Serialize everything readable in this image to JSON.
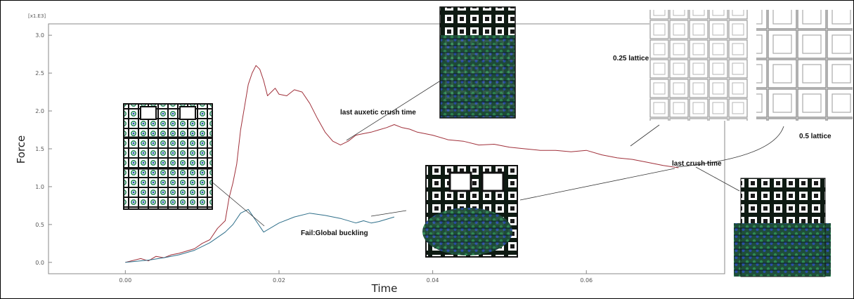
{
  "chart_data": {
    "type": "line",
    "scale_label": "[x1.E3]",
    "xlabel": "Time",
    "ylabel": "Force",
    "xlim": [
      -0.01,
      0.078
    ],
    "ylim": [
      -0.15,
      3.15
    ],
    "x_ticks": [
      0.0,
      0.02,
      0.04,
      0.06
    ],
    "x_tick_labels": [
      "0.00",
      "0.02",
      "0.04",
      "0.06"
    ],
    "y_ticks": [
      0.0,
      0.5,
      1.0,
      1.5,
      2.0,
      2.5,
      3.0
    ],
    "y_tick_labels": [
      "0.0",
      "0.5",
      "1.0",
      "1.5",
      "2.0",
      "2.5",
      "3.0"
    ],
    "grid": false,
    "series": [
      {
        "color": "#a0303a",
        "x": [
          0.0,
          0.002,
          0.003,
          0.004,
          0.005,
          0.006,
          0.007,
          0.008,
          0.009,
          0.01,
          0.011,
          0.012,
          0.013,
          0.0135,
          0.014,
          0.0145,
          0.015,
          0.0155,
          0.016,
          0.0165,
          0.017,
          0.0175,
          0.018,
          0.0185,
          0.019,
          0.0195,
          0.02,
          0.021,
          0.022,
          0.023,
          0.024,
          0.025,
          0.026,
          0.027,
          0.028,
          0.029,
          0.03,
          0.031,
          0.032,
          0.033,
          0.034,
          0.035,
          0.036,
          0.037,
          0.038,
          0.04,
          0.042,
          0.044,
          0.046,
          0.048,
          0.05,
          0.052,
          0.054,
          0.056,
          0.058,
          0.06,
          0.062,
          0.064,
          0.066,
          0.068,
          0.07,
          0.072
        ],
        "y": [
          0.0,
          0.05,
          0.02,
          0.08,
          0.06,
          0.1,
          0.12,
          0.15,
          0.18,
          0.25,
          0.3,
          0.45,
          0.55,
          0.85,
          1.05,
          1.3,
          1.75,
          2.05,
          2.35,
          2.5,
          2.6,
          2.55,
          2.4,
          2.2,
          2.25,
          2.3,
          2.22,
          2.2,
          2.28,
          2.25,
          2.1,
          1.9,
          1.72,
          1.6,
          1.55,
          1.6,
          1.68,
          1.7,
          1.72,
          1.75,
          1.78,
          1.82,
          1.78,
          1.76,
          1.72,
          1.68,
          1.62,
          1.6,
          1.55,
          1.56,
          1.52,
          1.5,
          1.48,
          1.48,
          1.46,
          1.48,
          1.42,
          1.38,
          1.36,
          1.32,
          1.28,
          1.25
        ]
      },
      {
        "color": "#2f6f8a",
        "x": [
          0.0,
          0.003,
          0.005,
          0.007,
          0.009,
          0.011,
          0.013,
          0.014,
          0.015,
          0.016,
          0.017,
          0.018,
          0.02,
          0.022,
          0.024,
          0.026,
          0.028,
          0.03,
          0.031,
          0.032,
          0.033,
          0.035
        ],
        "y": [
          0.0,
          0.03,
          0.06,
          0.1,
          0.16,
          0.26,
          0.4,
          0.5,
          0.65,
          0.7,
          0.55,
          0.4,
          0.52,
          0.6,
          0.65,
          0.62,
          0.58,
          0.52,
          0.55,
          0.52,
          0.54,
          0.6
        ]
      }
    ],
    "annotations": [
      "last auxetic crush time",
      "0.25 lattice",
      "0.5 lattice",
      "last crush time",
      "Fail:Global buckling"
    ]
  }
}
